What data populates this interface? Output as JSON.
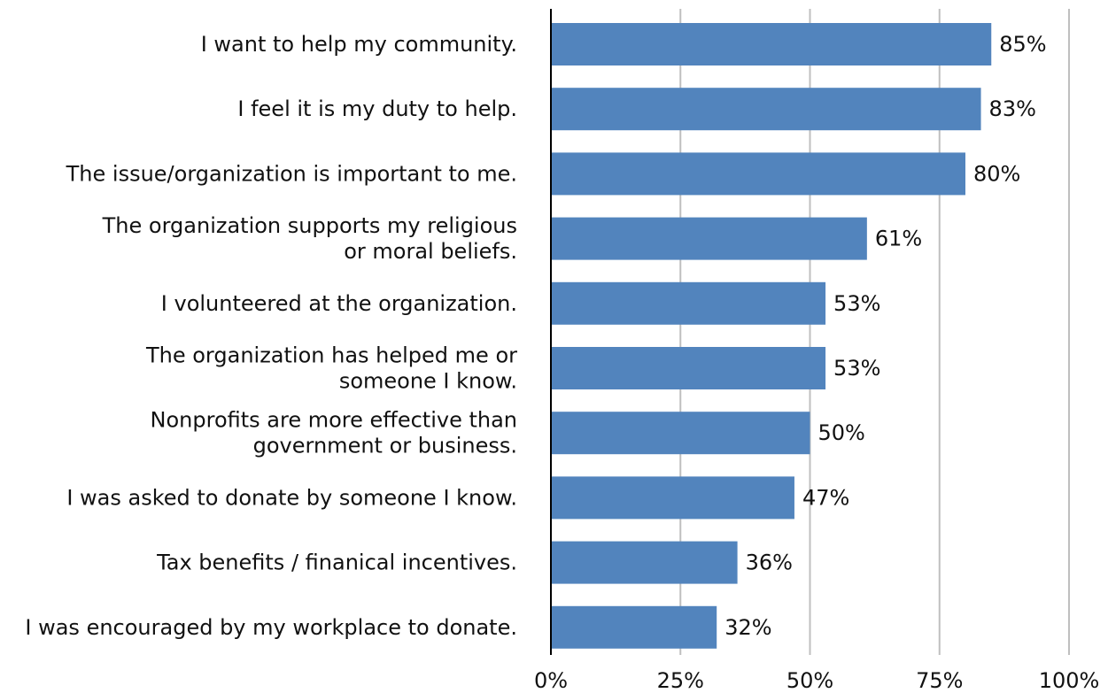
{
  "chart_data": {
    "type": "bar",
    "orientation": "horizontal",
    "categories": [
      [
        "I want to help my community."
      ],
      [
        "I feel it is my duty to help."
      ],
      [
        "The issue/organization is important to me."
      ],
      [
        "The organization supports my religious",
        "or moral beliefs."
      ],
      [
        "I volunteered at the organization."
      ],
      [
        "The organization has helped me or",
        "someone I know."
      ],
      [
        "Nonprofits are more effective than",
        "government or business."
      ],
      [
        "I was asked to donate by someone I know."
      ],
      [
        "Tax benefits / finanical incentives."
      ],
      [
        "I was encouraged by my workplace to donate."
      ]
    ],
    "values": [
      85,
      83,
      80,
      61,
      53,
      53,
      50,
      47,
      36,
      32
    ],
    "value_labels": [
      "85%",
      "83%",
      "80%",
      "61%",
      "53%",
      "53%",
      "50%",
      "47%",
      "36%",
      "32%"
    ],
    "xlim": [
      0,
      100
    ],
    "xticks": [
      0,
      25,
      50,
      75,
      100
    ],
    "xtick_labels": [
      "0%",
      "25%",
      "50%",
      "75%",
      "100%"
    ],
    "grid": "vertical",
    "bar_color": "#5284BD",
    "grid_color": "#BFBFBF",
    "axis_color": "#000000",
    "title": "",
    "xlabel": "",
    "ylabel": ""
  }
}
